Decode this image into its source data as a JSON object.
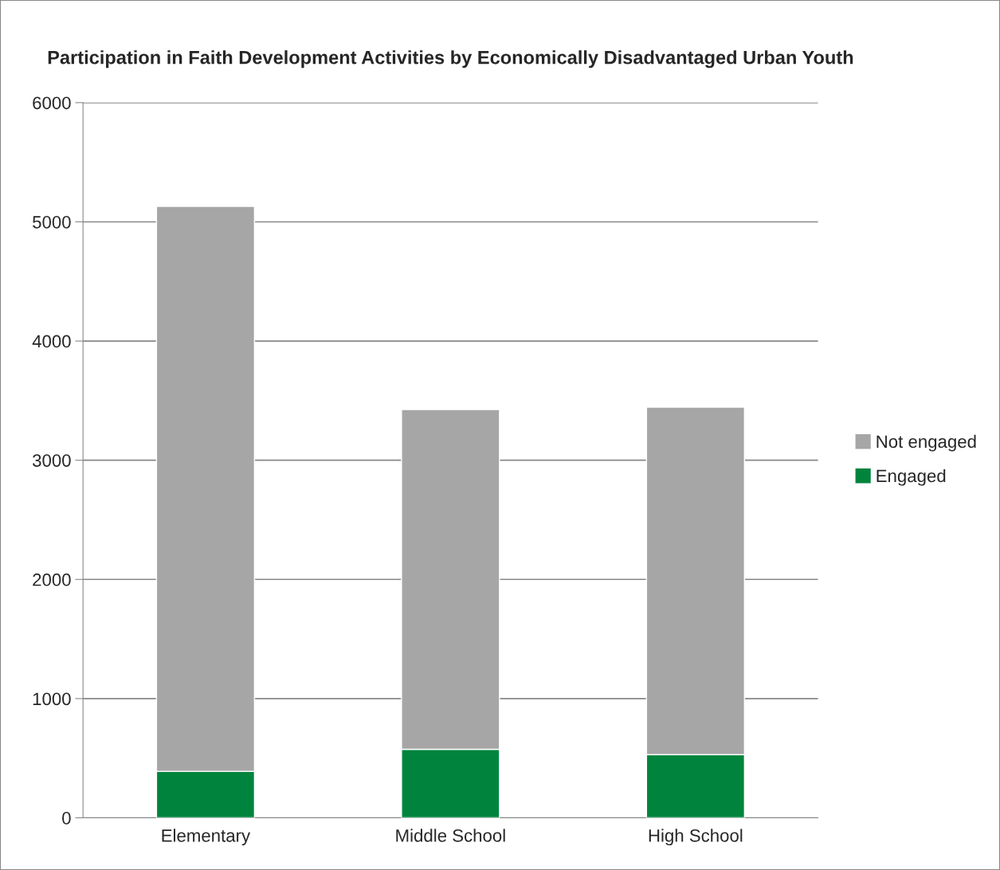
{
  "chart_data": {
    "type": "bar",
    "title": "Participation in Faith Development Activities by Economically Disadvantaged Urban Youth",
    "categories": [
      "Elementary",
      "Middle School",
      "High School"
    ],
    "series": [
      {
        "name": "Engaged",
        "color": "#00843d",
        "values": [
          390,
          575,
          530
        ]
      },
      {
        "name": "Not engaged",
        "color": "#a6a6a6",
        "values": [
          4740,
          2850,
          2915
        ]
      }
    ],
    "stacked": true,
    "ylim": [
      0,
      6000
    ],
    "yticks": [
      0,
      1000,
      2000,
      3000,
      4000,
      5000,
      6000
    ],
    "grid": "y",
    "legend": "right"
  }
}
